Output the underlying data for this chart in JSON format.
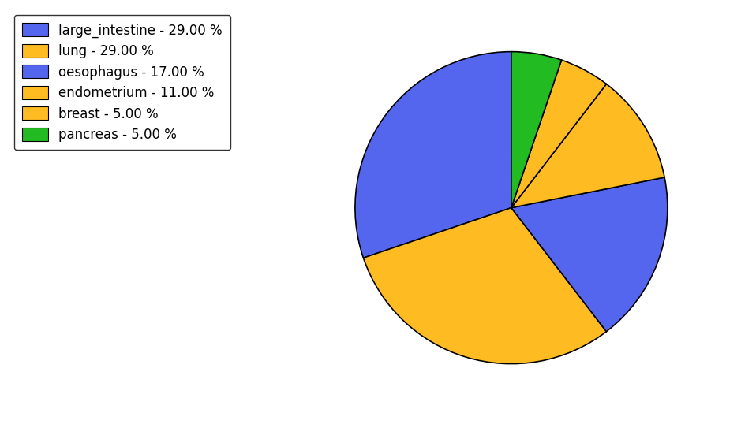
{
  "labels": [
    "large_intestine",
    "lung",
    "oesophagus",
    "endometrium",
    "breast",
    "pancreas"
  ],
  "values": [
    29,
    29,
    17,
    11,
    5,
    5
  ],
  "colors": [
    "#5566ee",
    "#ffbb22",
    "#5566ee",
    "#ffbb22",
    "#ffbb22",
    "#22bb22"
  ],
  "legend_labels": [
    "large_intestine - 29.00 %",
    "lung - 29.00 %",
    "oesophagus - 17.00 %",
    "endometrium - 11.00 %",
    "breast - 5.00 %",
    "pancreas - 5.00 %"
  ],
  "legend_colors": [
    "#5566ee",
    "#ffbb22",
    "#5566ee",
    "#ffbb22",
    "#ffbb22",
    "#22bb22"
  ],
  "startangle": 90,
  "figsize": [
    9.39,
    5.38
  ],
  "dpi": 100,
  "edge_color": "black",
  "edge_width": 1.2,
  "legend_fontsize": 12
}
